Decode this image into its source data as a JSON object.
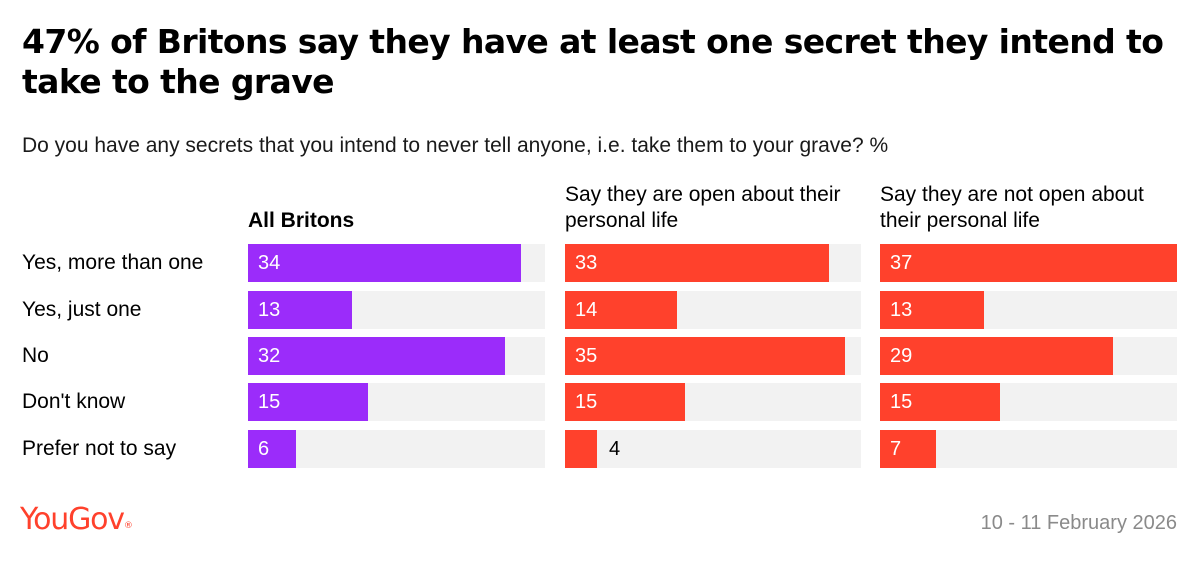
{
  "title": "47% of Britons say they have at least one secret they intend to take to the grave",
  "subtitle": "Do you have any secrets that you intend to never tell anyone, i.e. take them to your grave? %",
  "footer": {
    "brand": "YouGov",
    "date": "10 - 11 February 2026"
  },
  "colors": {
    "purple": "#9b2cfa",
    "red": "#ff412c",
    "track": "#f2f2f2",
    "brand": "#ff412c"
  },
  "chart_data": {
    "type": "bar",
    "orientation": "horizontal",
    "categories": [
      "Yes, more than one",
      "Yes, just one",
      "No",
      "Don't know",
      "Prefer not to say"
    ],
    "series": [
      {
        "name": "All Britons",
        "values": [
          34,
          13,
          32,
          15,
          6
        ]
      },
      {
        "name": "Say they are open about their personal life",
        "values": [
          33,
          14,
          35,
          15,
          4
        ]
      },
      {
        "name": "Say they are not open about their personal life",
        "values": [
          37,
          13,
          29,
          15,
          7
        ]
      }
    ],
    "xlim": [
      0,
      37
    ],
    "grid": false
  }
}
